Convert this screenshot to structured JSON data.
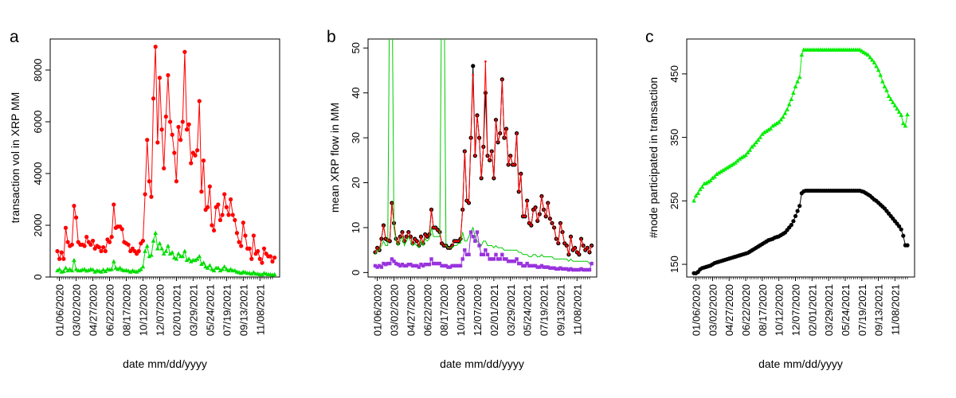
{
  "chart_data": [
    {
      "panel": "a",
      "type": "line",
      "xlabel": "date mm/dd/yyyy",
      "ylabel": "transaction vol in XRP MM",
      "x_tick_labels": [
        "01/06/2020",
        "03/02/2020",
        "04/27/2020",
        "06/22/2020",
        "08/17/2020",
        "10/12/2020",
        "12/07/2020",
        "02/01/2021",
        "03/29/2021",
        "05/24/2021",
        "07/19/2021",
        "09/13/2021",
        "11/08/2021"
      ],
      "x_range": [
        1,
        104
      ],
      "ylim": [
        0,
        9200
      ],
      "y_ticks": [
        0,
        2000,
        4000,
        6000,
        8000
      ],
      "grid": false,
      "series": [
        {
          "color": "#ff0000",
          "marker": "circle",
          "values": [
            1000,
            700,
            950,
            700,
            1900,
            1350,
            1200,
            1250,
            2750,
            2300,
            1350,
            1250,
            1250,
            1200,
            1550,
            1350,
            1250,
            1400,
            1100,
            1200,
            1150,
            1000,
            1150,
            1000,
            1450,
            1350,
            1550,
            2800,
            1900,
            1950,
            1950,
            1850,
            1350,
            1300,
            1250,
            1000,
            1100,
            1000,
            900,
            1000,
            1300,
            1400,
            3200,
            5300,
            3700,
            3100,
            6900,
            8900,
            5200,
            7700,
            5700,
            4200,
            6200,
            7800,
            6000,
            5500,
            4800,
            3700,
            5800,
            5300,
            6000,
            8700,
            5700,
            5900,
            4400,
            4800,
            4700,
            4900,
            6800,
            3300,
            4500,
            2600,
            2700,
            3500,
            2000,
            1800,
            2700,
            2800,
            2200,
            2400,
            3200,
            2700,
            2400,
            3000,
            2400,
            2200,
            1700,
            1350,
            1200,
            2100,
            1600,
            1100,
            1100,
            700,
            1600,
            900,
            1000,
            700,
            550,
            1100,
            900,
            800,
            800,
            600,
            750
          ]
        },
        {
          "color": "#00dd00",
          "marker": "triangle",
          "values": [
            250,
            300,
            200,
            220,
            350,
            250,
            300,
            250,
            650,
            300,
            250,
            250,
            280,
            300,
            240,
            260,
            300,
            280,
            200,
            250,
            230,
            200,
            280,
            220,
            300,
            280,
            300,
            600,
            350,
            300,
            350,
            280,
            250,
            260,
            240,
            200,
            250,
            220,
            200,
            250,
            300,
            400,
            1000,
            1200,
            800,
            850,
            1400,
            1700,
            1100,
            1300,
            1100,
            900,
            1000,
            1200,
            900,
            950,
            750,
            700,
            900,
            800,
            800,
            1000,
            650,
            700,
            600,
            650,
            650,
            700,
            800,
            500,
            550,
            400,
            350,
            450,
            300,
            250,
            350,
            350,
            250,
            300,
            400,
            300,
            250,
            300,
            250,
            250,
            200,
            180,
            150,
            200,
            180,
            150,
            150,
            120,
            180,
            120,
            120,
            100,
            90,
            150,
            120,
            100,
            100,
            80,
            100
          ]
        }
      ]
    },
    {
      "panel": "b",
      "type": "line",
      "xlabel": "date mm/dd/yyyy",
      "ylabel": "mean XRP flow in MM",
      "x_tick_labels": [
        "01/06/2020",
        "03/02/2020",
        "04/27/2020",
        "06/22/2020",
        "08/17/2020",
        "10/12/2020",
        "12/07/2020",
        "02/01/2021",
        "03/29/2021",
        "05/24/2021",
        "07/19/2021",
        "09/13/2021",
        "11/08/2021"
      ],
      "x_range": [
        1,
        104
      ],
      "ylim": [
        -1,
        52
      ],
      "y_ticks": [
        0,
        10,
        20,
        30,
        40,
        50
      ],
      "grid": false,
      "series": [
        {
          "color": "#000000",
          "marker": "circle",
          "values": [
            4.5,
            5.5,
            5,
            7.5,
            10.5,
            7.5,
            7.2,
            7,
            15.5,
            11,
            7.5,
            6.5,
            8,
            9,
            7,
            8,
            9,
            8,
            6.5,
            7.5,
            7,
            6,
            8,
            6.5,
            8.5,
            8,
            8.5,
            14,
            10,
            10,
            9.5,
            9,
            6.5,
            6,
            6,
            5.5,
            5.5,
            6,
            7,
            7,
            7,
            7.5,
            14,
            27,
            16,
            15.5,
            30,
            46,
            26,
            35,
            30,
            21,
            28,
            40,
            26,
            25,
            27,
            21,
            34,
            29,
            31,
            43,
            30,
            32,
            24,
            26,
            24,
            24,
            31,
            18,
            22,
            12.5,
            12.5,
            16,
            11,
            10.5,
            14,
            14.5,
            11.5,
            13,
            17,
            14,
            12.5,
            15.5,
            12,
            11,
            10,
            7.5,
            6.5,
            11,
            9,
            6.5,
            6,
            4,
            8,
            5,
            5.5,
            4.5,
            4,
            7.5,
            6,
            5,
            5.5,
            4.5,
            6
          ]
        },
        {
          "color": "#ff0000",
          "marker": "point",
          "values": [
            4.5,
            5.5,
            5,
            7.5,
            10.5,
            7.5,
            7.2,
            7,
            15.5,
            11,
            7.5,
            6.5,
            8,
            9,
            7,
            8,
            9,
            8,
            6.5,
            7.5,
            7,
            6,
            8,
            6.5,
            8.5,
            8,
            8.5,
            14,
            10,
            10,
            9.5,
            9,
            6.5,
            6,
            6,
            5.5,
            5.5,
            6,
            7,
            7,
            7,
            7.5,
            14,
            27,
            16,
            15.5,
            30,
            44,
            26,
            35,
            30,
            21,
            28,
            47,
            26,
            25,
            27,
            21,
            34,
            29,
            31,
            43,
            30,
            32,
            24,
            26,
            24,
            24,
            31,
            18,
            22,
            12.5,
            12.5,
            16,
            11,
            10.5,
            14,
            14.5,
            11.5,
            13,
            17,
            14,
            12.5,
            15.5,
            12,
            11,
            10,
            7.5,
            6.5,
            11,
            9,
            6.5,
            6,
            4,
            8,
            5,
            5.5,
            4.5,
            4,
            7.5,
            6,
            5,
            5.5,
            4.5,
            6
          ]
        },
        {
          "color": "#00cc00",
          "marker": "none",
          "values": [
            4,
            5,
            5,
            6,
            7,
            6,
            6,
            70,
            70,
            10,
            7,
            6,
            7,
            8,
            6,
            7,
            8,
            7,
            6,
            6.5,
            6,
            5.5,
            7,
            6,
            7.5,
            7,
            7.5,
            10,
            8,
            8,
            8,
            8,
            70,
            70,
            6,
            5.5,
            5.5,
            5.5,
            6,
            6,
            6.5,
            6.5,
            9,
            7,
            7,
            8,
            9,
            10,
            8,
            7,
            6.5,
            6,
            7,
            7,
            6,
            6,
            6,
            5.5,
            6,
            5.5,
            5.5,
            5.5,
            5,
            5,
            5,
            5,
            5,
            5,
            5,
            4.5,
            4.5,
            4,
            4,
            4,
            3.5,
            3.5,
            4,
            4,
            3.5,
            3.5,
            4,
            3.5,
            3.5,
            3.5,
            3.5,
            3.5,
            3,
            3,
            3,
            3,
            3,
            3,
            3,
            2.5,
            3,
            2.5,
            2.5,
            2.5,
            2.5,
            2.5,
            2.5,
            2.5,
            2.5,
            2,
            2
          ]
        },
        {
          "color": "#9933dd",
          "marker": "square",
          "values": [
            1.5,
            1.2,
            1.5,
            1.2,
            2,
            1.8,
            2,
            2,
            3,
            2.5,
            2,
            1.8,
            1.5,
            1.8,
            1.5,
            1.5,
            1.8,
            1.8,
            1.5,
            1.5,
            1.5,
            1.2,
            1.8,
            1.5,
            1.8,
            1.8,
            1.8,
            3,
            2,
            2,
            2,
            2,
            1.5,
            1.5,
            1.5,
            1.2,
            1.2,
            1.5,
            1.5,
            1.5,
            1.5,
            1.5,
            3,
            5,
            4,
            4,
            9,
            8,
            7,
            9,
            6,
            4,
            4,
            5,
            4,
            3,
            3,
            3,
            4,
            3,
            3,
            4,
            3,
            3,
            2.5,
            2.5,
            2.5,
            2.5,
            3,
            2,
            2,
            1.5,
            1.5,
            2,
            1.5,
            1.5,
            1.5,
            1.5,
            1.2,
            1.2,
            1.5,
            1.2,
            1.2,
            1.2,
            1,
            1,
            1,
            0.8,
            0.8,
            1,
            0.8,
            0.8,
            0.8,
            0.6,
            0.8,
            0.6,
            0.6,
            0.6,
            0.6,
            0.8,
            0.6,
            0.6,
            0.6,
            0.6,
            2
          ]
        }
      ]
    },
    {
      "panel": "c",
      "type": "line",
      "xlabel": "date mm/dd/yyyy",
      "ylabel": "#node participated in transaction",
      "x_tick_labels": [
        "01/06/2020",
        "03/02/2020",
        "04/27/2020",
        "06/22/2020",
        "08/17/2020",
        "10/12/2020",
        "12/07/2020",
        "02/01/2021",
        "03/29/2021",
        "05/24/2021",
        "07/19/2021",
        "09/13/2021",
        "11/08/2021"
      ],
      "x_range": [
        1,
        104
      ],
      "ylim": [
        130,
        505
      ],
      "y_ticks": [
        150,
        250,
        350,
        450
      ],
      "grid": false,
      "series": [
        {
          "color": "#00ee00",
          "marker": "triangle",
          "values": [
            250,
            258,
            262,
            268,
            272,
            277,
            278,
            280,
            282,
            286,
            288,
            292,
            294,
            296,
            298,
            300,
            302,
            304,
            306,
            308,
            310,
            313,
            316,
            318,
            320,
            322,
            326,
            330,
            335,
            338,
            342,
            346,
            350,
            355,
            358,
            360,
            362,
            364,
            368,
            370,
            372,
            374,
            378,
            382,
            388,
            394,
            402,
            410,
            420,
            430,
            438,
            445,
            480,
            488,
            488,
            488,
            488,
            488,
            488,
            488,
            488,
            488,
            488,
            488,
            488,
            488,
            488,
            488,
            488,
            488,
            488,
            488,
            488,
            488,
            488,
            488,
            488,
            488,
            488,
            488,
            488,
            486,
            484,
            482,
            480,
            476,
            472,
            468,
            462,
            456,
            448,
            438,
            430,
            424,
            415,
            410,
            405,
            400,
            395,
            390,
            385,
            372,
            368,
            386
          ]
        },
        {
          "color": "#000000",
          "marker": "circle",
          "values": [
            136,
            136,
            138,
            142,
            144,
            145,
            146,
            147,
            148,
            150,
            152,
            153,
            154,
            155,
            156,
            157,
            158,
            159,
            160,
            161,
            162,
            163,
            164,
            165,
            166,
            167,
            168,
            170,
            172,
            174,
            176,
            178,
            180,
            182,
            184,
            186,
            188,
            189,
            190,
            192,
            193,
            194,
            196,
            198,
            200,
            204,
            208,
            212,
            218,
            226,
            234,
            242,
            262,
            265,
            266,
            266,
            266,
            266,
            266,
            266,
            266,
            266,
            266,
            266,
            266,
            266,
            266,
            266,
            266,
            266,
            266,
            266,
            266,
            266,
            266,
            266,
            266,
            266,
            266,
            266,
            266,
            265,
            264,
            262,
            260,
            258,
            255,
            252,
            250,
            247,
            244,
            241,
            238,
            234,
            230,
            226,
            222,
            218,
            214,
            210,
            205,
            195,
            180,
            180
          ]
        }
      ]
    }
  ]
}
